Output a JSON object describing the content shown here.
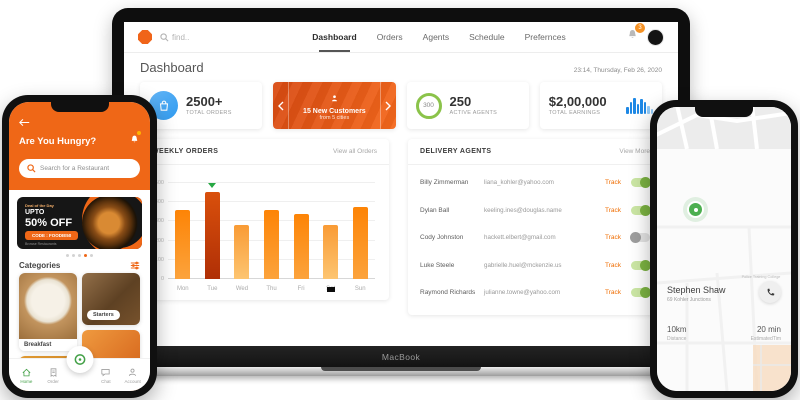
{
  "laptop": {
    "brand": "MacBook",
    "topbar": {
      "search_placeholder": "find..",
      "nav": [
        {
          "label": "Dashboard",
          "active": true
        },
        {
          "label": "Orders",
          "active": false
        },
        {
          "label": "Agents",
          "active": false
        },
        {
          "label": "Schedule",
          "active": false
        },
        {
          "label": "Prefernces",
          "active": false
        }
      ],
      "notification_count": "3"
    },
    "page": {
      "title": "Dashboard",
      "datetime": "23:14, Thursday, Feb 26, 2020"
    },
    "stats": {
      "orders": {
        "value": "2500+",
        "label": "TOTAL ORDERS"
      },
      "customers": {
        "title": "15 New Customers",
        "subtitle": "from 5 cities"
      },
      "agents": {
        "ring_value": "300",
        "value": "250",
        "label": "ACTIVE AGENTS"
      },
      "earnings": {
        "value": "$2,00,000",
        "label": "TOTAL EARNINGS"
      }
    },
    "weekly_orders_panel": {
      "title": "WEEKLY ORDERS",
      "link": "View all Orders"
    },
    "delivery_agents_panel": {
      "title": "DELIVERY AGENTS",
      "link": "View More",
      "track_label": "Track",
      "rows": [
        {
          "name": "Billy Zimmerman",
          "email": "liana_kohler@yahoo.com",
          "tracking_on": true
        },
        {
          "name": "Dylan Ball",
          "email": "keeling.ines@douglas.name",
          "tracking_on": true
        },
        {
          "name": "Cody Johnston",
          "email": "hackett.elbert@gmail.com",
          "tracking_on": false
        },
        {
          "name": "Luke Steele",
          "email": "gabrielle.huel@mckenzie.us",
          "tracking_on": true
        },
        {
          "name": "Raymond Richards",
          "email": "julianne.towne@yahoo.com",
          "tracking_on": true
        }
      ]
    }
  },
  "chart_data": {
    "type": "bar",
    "title": "WEEKLY ORDERS",
    "categories": [
      "Mon",
      "Tue",
      "Wed",
      "Thu",
      "Fri",
      "Sat",
      "Sun"
    ],
    "values": [
      360,
      455,
      280,
      360,
      340,
      280,
      375
    ],
    "xlabel": "",
    "ylabel": "",
    "ylim": [
      0,
      500
    ],
    "yticks": [
      0,
      100,
      200,
      300,
      400,
      500
    ],
    "grid": true,
    "legend": false,
    "bar_styles": [
      "normal",
      "highlight",
      "light",
      "normal",
      "normal",
      "light",
      "normal"
    ],
    "annotations": {
      "triangle_marker_category": "Tue",
      "square_marker_category": "Sat"
    }
  },
  "phone_left": {
    "header": {
      "title": "Are You Hungry?",
      "search_placeholder": "Search for a Restaurant"
    },
    "promo": {
      "eyebrow": "Deal of the Day",
      "line1": "UPTO",
      "line2": "50% OFF",
      "button": "CODE : FOODIE50",
      "footnote": "Browse Restaurants"
    },
    "carousel": {
      "dot_count": 5,
      "active_dot": 3
    },
    "categories_title": "Categories",
    "categories": [
      {
        "label": "Breakfast"
      },
      {
        "label": "Starters"
      }
    ],
    "tabs": [
      {
        "label": "Home",
        "icon": "home-icon",
        "active": true
      },
      {
        "label": "Order",
        "icon": "order-icon",
        "active": false
      },
      {
        "label": "Chat",
        "icon": "chat-icon",
        "active": false
      },
      {
        "label": "Account",
        "icon": "account-icon",
        "active": false
      }
    ]
  },
  "phone_right": {
    "driver": {
      "name": "Stephen Shaw",
      "address": "69 Kohler Junctions"
    },
    "metrics": [
      {
        "value": "10km",
        "label": "Distance"
      },
      {
        "value": "20 min",
        "label": "EstimatedTim"
      }
    ],
    "map_labels": {
      "poi": "Police Training College"
    }
  },
  "colors": {
    "accent_orange": "#ef6717",
    "bar_orange": "#fd8406",
    "bar_dark": "#b02f06",
    "bar_light": "#fdc571",
    "toggle_green": "#7cb342",
    "blue_icon": "#2f9bf0",
    "green_pin": "#4caf50"
  }
}
